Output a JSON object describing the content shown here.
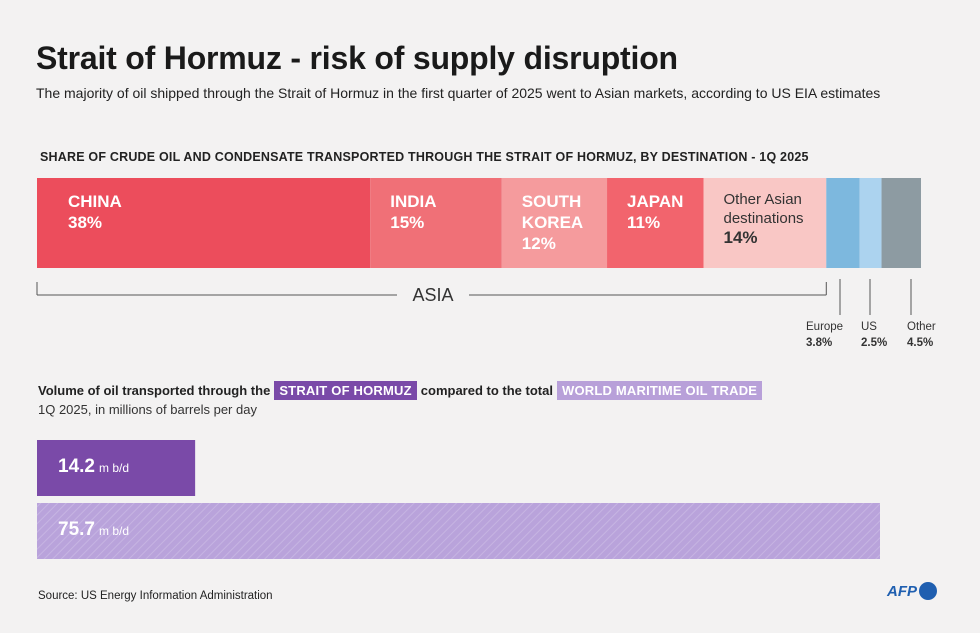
{
  "title": "Strait of Hormuz - risk of supply disruption",
  "subtitle": "The majority of oil shipped through the Strait of Hormuz in the first quarter of 2025 went to Asian markets, according to US EIA estimates",
  "chart_data": [
    {
      "type": "bar",
      "orientation": "horizontal-stacked",
      "title": "SHARE OF CRUDE OIL AND CONDENSATE TRANSPORTED THROUGH THE STRAIT OF HORMUZ, BY DESTINATION - 1Q 2025",
      "unit": "%",
      "group_label": "ASIA",
      "segments": [
        {
          "name": "CHINA",
          "label_lines": "CHINA",
          "value": 38,
          "value_label": "38%",
          "group": "ASIA",
          "color": "#ec4d5c"
        },
        {
          "name": "INDIA",
          "label_lines": "INDIA",
          "value": 15,
          "value_label": "15%",
          "group": "ASIA",
          "color": "#f07077"
        },
        {
          "name": "SOUTH KOREA",
          "label_lines": "SOUTH\nKOREA",
          "value": 12,
          "value_label": "12%",
          "group": "ASIA",
          "color": "#f59b9d"
        },
        {
          "name": "JAPAN",
          "label_lines": "JAPAN",
          "value": 11,
          "value_label": "11%",
          "group": "ASIA",
          "color": "#f2646d"
        },
        {
          "name": "Other Asian destinations",
          "label_lines": "Other Asian\ndestinations",
          "value": 14,
          "value_label": "14%",
          "group": "ASIA",
          "color": "#f9c7c5"
        },
        {
          "name": "Europe",
          "label_lines": "Europe",
          "value": 3.8,
          "value_label": "3.8%",
          "group": "",
          "color": "#7db8de"
        },
        {
          "name": "US",
          "label_lines": "US",
          "value": 2.5,
          "value_label": "2.5%",
          "group": "",
          "color": "#acd3ef"
        },
        {
          "name": "Other",
          "label_lines": "Other",
          "value": 4.5,
          "value_label": "4.5%",
          "group": "",
          "color": "#8d9ba2"
        }
      ]
    },
    {
      "type": "bar",
      "orientation": "horizontal",
      "title_prefix": "Volume of oil transported through the",
      "title_tag1": "STRAIT OF HORMUZ",
      "title_middle": "compared to the total",
      "title_tag2": "WORLD MARITIME OIL TRADE",
      "subtitle": "1Q 2025, in millions of barrels per day",
      "unit": "m b/d",
      "categories": [
        "STRAIT OF HORMUZ",
        "WORLD MARITIME OIL TRADE"
      ],
      "values": [
        14.2,
        75.7
      ],
      "value_labels": [
        "14.2",
        "75.7"
      ],
      "colors": [
        "#7a4aa8",
        "#b9a3db"
      ]
    }
  ],
  "source": "Source: US Energy Information Administration",
  "logo": "AFP"
}
